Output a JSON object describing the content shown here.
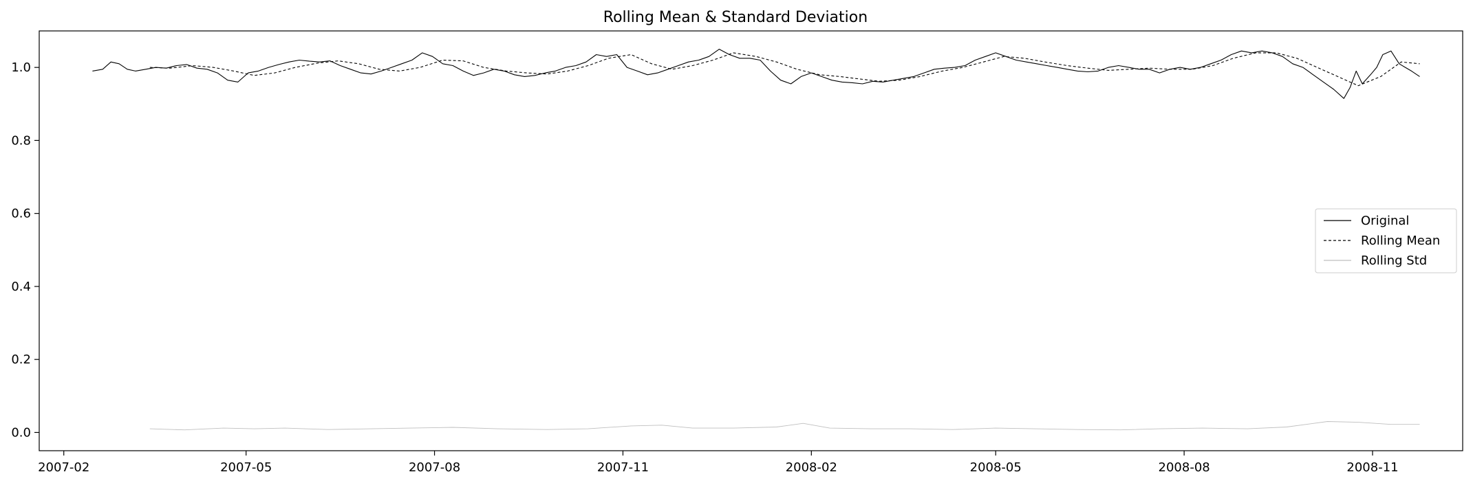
{
  "chart_data": {
    "type": "line",
    "title": "Rolling Mean & Standard Deviation",
    "xlabel": "",
    "ylabel": "",
    "xlim": [
      "2007-01-20",
      "2008-12-15"
    ],
    "ylim": [
      -0.05,
      1.1
    ],
    "x_ticks": [
      "2007-02",
      "2007-05",
      "2007-08",
      "2007-11",
      "2008-02",
      "2008-05",
      "2008-08",
      "2008-11"
    ],
    "y_ticks": [
      0.0,
      0.2,
      0.4,
      0.6,
      0.8,
      1.0
    ],
    "grid": false,
    "legend_position": "right",
    "series": [
      {
        "name": "Original",
        "style": "solid",
        "color": "#000000",
        "points": [
          [
            "2007-02-15",
            0.99
          ],
          [
            "2007-02-20",
            0.995
          ],
          [
            "2007-02-24",
            1.015
          ],
          [
            "2007-02-28",
            1.01
          ],
          [
            "2007-03-04",
            0.995
          ],
          [
            "2007-03-08",
            0.99
          ],
          [
            "2007-03-13",
            0.995
          ],
          [
            "2007-03-18",
            1.0
          ],
          [
            "2007-03-23",
            0.998
          ],
          [
            "2007-03-28",
            1.005
          ],
          [
            "2007-04-02",
            1.008
          ],
          [
            "2007-04-07",
            0.998
          ],
          [
            "2007-04-12",
            0.995
          ],
          [
            "2007-04-17",
            0.985
          ],
          [
            "2007-04-22",
            0.965
          ],
          [
            "2007-04-27",
            0.96
          ],
          [
            "2007-05-02",
            0.985
          ],
          [
            "2007-05-07",
            0.99
          ],
          [
            "2007-05-12",
            1.0
          ],
          [
            "2007-05-17",
            1.008
          ],
          [
            "2007-05-22",
            1.015
          ],
          [
            "2007-05-27",
            1.02
          ],
          [
            "2007-06-01",
            1.017
          ],
          [
            "2007-06-06",
            1.015
          ],
          [
            "2007-06-11",
            1.018
          ],
          [
            "2007-06-16",
            1.005
          ],
          [
            "2007-06-21",
            0.995
          ],
          [
            "2007-06-26",
            0.985
          ],
          [
            "2007-07-01",
            0.982
          ],
          [
            "2007-07-06",
            0.99
          ],
          [
            "2007-07-11",
            1.0
          ],
          [
            "2007-07-16",
            1.01
          ],
          [
            "2007-07-21",
            1.02
          ],
          [
            "2007-07-26",
            1.04
          ],
          [
            "2007-07-31",
            1.03
          ],
          [
            "2007-08-05",
            1.01
          ],
          [
            "2007-08-10",
            1.005
          ],
          [
            "2007-08-15",
            0.99
          ],
          [
            "2007-08-20",
            0.978
          ],
          [
            "2007-08-25",
            0.985
          ],
          [
            "2007-08-30",
            0.995
          ],
          [
            "2007-09-04",
            0.99
          ],
          [
            "2007-09-09",
            0.98
          ],
          [
            "2007-09-14",
            0.975
          ],
          [
            "2007-09-19",
            0.978
          ],
          [
            "2007-09-24",
            0.985
          ],
          [
            "2007-09-29",
            0.99
          ],
          [
            "2007-10-04",
            1.0
          ],
          [
            "2007-10-09",
            1.005
          ],
          [
            "2007-10-14",
            1.015
          ],
          [
            "2007-10-19",
            1.035
          ],
          [
            "2007-10-24",
            1.03
          ],
          [
            "2007-10-29",
            1.035
          ],
          [
            "2007-11-03",
            1.0
          ],
          [
            "2007-11-08",
            0.99
          ],
          [
            "2007-11-13",
            0.98
          ],
          [
            "2007-11-18",
            0.985
          ],
          [
            "2007-11-23",
            0.995
          ],
          [
            "2007-11-28",
            1.005
          ],
          [
            "2007-12-03",
            1.015
          ],
          [
            "2007-12-08",
            1.02
          ],
          [
            "2007-12-13",
            1.03
          ],
          [
            "2007-12-18",
            1.05
          ],
          [
            "2007-12-23",
            1.035
          ],
          [
            "2007-12-28",
            1.025
          ],
          [
            "2008-01-02",
            1.025
          ],
          [
            "2008-01-07",
            1.02
          ],
          [
            "2008-01-12",
            0.99
          ],
          [
            "2008-01-17",
            0.965
          ],
          [
            "2008-01-22",
            0.955
          ],
          [
            "2008-01-27",
            0.975
          ],
          [
            "2008-02-01",
            0.985
          ],
          [
            "2008-02-06",
            0.975
          ],
          [
            "2008-02-11",
            0.965
          ],
          [
            "2008-02-16",
            0.96
          ],
          [
            "2008-02-21",
            0.958
          ],
          [
            "2008-02-26",
            0.955
          ],
          [
            "2008-03-02",
            0.962
          ],
          [
            "2008-03-07",
            0.96
          ],
          [
            "2008-03-12",
            0.965
          ],
          [
            "2008-03-17",
            0.97
          ],
          [
            "2008-03-22",
            0.975
          ],
          [
            "2008-03-27",
            0.985
          ],
          [
            "2008-04-01",
            0.995
          ],
          [
            "2008-04-06",
            0.998
          ],
          [
            "2008-04-11",
            1.0
          ],
          [
            "2008-04-16",
            1.005
          ],
          [
            "2008-04-21",
            1.02
          ],
          [
            "2008-04-26",
            1.03
          ],
          [
            "2008-05-01",
            1.04
          ],
          [
            "2008-05-06",
            1.03
          ],
          [
            "2008-05-11",
            1.02
          ],
          [
            "2008-05-16",
            1.015
          ],
          [
            "2008-05-21",
            1.01
          ],
          [
            "2008-05-26",
            1.005
          ],
          [
            "2008-05-31",
            1.0
          ],
          [
            "2008-06-05",
            0.995
          ],
          [
            "2008-06-10",
            0.99
          ],
          [
            "2008-06-15",
            0.988
          ],
          [
            "2008-06-20",
            0.99
          ],
          [
            "2008-06-25",
            1.0
          ],
          [
            "2008-06-30",
            1.005
          ],
          [
            "2008-07-05",
            1.0
          ],
          [
            "2008-07-10",
            0.995
          ],
          [
            "2008-07-15",
            0.995
          ],
          [
            "2008-07-20",
            0.985
          ],
          [
            "2008-07-25",
            0.995
          ],
          [
            "2008-07-30",
            1.0
          ],
          [
            "2008-08-04",
            0.995
          ],
          [
            "2008-08-09",
            1.0
          ],
          [
            "2008-08-14",
            1.01
          ],
          [
            "2008-08-19",
            1.02
          ],
          [
            "2008-08-24",
            1.035
          ],
          [
            "2008-08-29",
            1.045
          ],
          [
            "2008-09-03",
            1.04
          ],
          [
            "2008-09-08",
            1.045
          ],
          [
            "2008-09-13",
            1.04
          ],
          [
            "2008-09-18",
            1.03
          ],
          [
            "2008-09-23",
            1.01
          ],
          [
            "2008-09-28",
            1.0
          ],
          [
            "2008-10-03",
            0.98
          ],
          [
            "2008-10-08",
            0.96
          ],
          [
            "2008-10-13",
            0.94
          ],
          [
            "2008-10-18",
            0.915
          ],
          [
            "2008-10-21",
            0.945
          ],
          [
            "2008-10-24",
            0.99
          ],
          [
            "2008-10-27",
            0.955
          ],
          [
            "2008-10-31",
            0.98
          ],
          [
            "2008-11-03",
            1.0
          ],
          [
            "2008-11-06",
            1.035
          ],
          [
            "2008-11-10",
            1.045
          ],
          [
            "2008-11-14",
            1.01
          ],
          [
            "2008-11-17",
            1.0
          ],
          [
            "2008-11-20",
            0.99
          ],
          [
            "2008-11-24",
            0.975
          ]
        ]
      },
      {
        "name": "Rolling Mean",
        "style": "dashed",
        "color": "#000000",
        "points": [
          [
            "2007-03-15",
            1.0
          ],
          [
            "2007-03-25",
            0.998
          ],
          [
            "2007-04-05",
            1.005
          ],
          [
            "2007-04-15",
            1.0
          ],
          [
            "2007-04-25",
            0.99
          ],
          [
            "2007-05-05",
            0.978
          ],
          [
            "2007-05-15",
            0.985
          ],
          [
            "2007-05-25",
            1.0
          ],
          [
            "2007-06-05",
            1.012
          ],
          [
            "2007-06-15",
            1.018
          ],
          [
            "2007-06-25",
            1.01
          ],
          [
            "2007-07-05",
            0.995
          ],
          [
            "2007-07-15",
            0.99
          ],
          [
            "2007-07-25",
            1.0
          ],
          [
            "2007-08-05",
            1.02
          ],
          [
            "2007-08-15",
            1.018
          ],
          [
            "2007-08-25",
            1.0
          ],
          [
            "2007-09-05",
            0.99
          ],
          [
            "2007-09-15",
            0.985
          ],
          [
            "2007-09-25",
            0.982
          ],
          [
            "2007-10-05",
            0.99
          ],
          [
            "2007-10-15",
            1.005
          ],
          [
            "2007-10-25",
            1.025
          ],
          [
            "2007-11-05",
            1.035
          ],
          [
            "2007-11-15",
            1.01
          ],
          [
            "2007-11-25",
            0.995
          ],
          [
            "2007-12-05",
            1.005
          ],
          [
            "2007-12-15",
            1.02
          ],
          [
            "2007-12-25",
            1.04
          ],
          [
            "2008-01-05",
            1.03
          ],
          [
            "2008-01-15",
            1.015
          ],
          [
            "2008-01-25",
            0.995
          ],
          [
            "2008-02-05",
            0.98
          ],
          [
            "2008-02-15",
            0.975
          ],
          [
            "2008-02-25",
            0.968
          ],
          [
            "2008-03-05",
            0.962
          ],
          [
            "2008-03-15",
            0.965
          ],
          [
            "2008-03-25",
            0.975
          ],
          [
            "2008-04-05",
            0.99
          ],
          [
            "2008-04-15",
            1.0
          ],
          [
            "2008-04-25",
            1.015
          ],
          [
            "2008-05-05",
            1.03
          ],
          [
            "2008-05-15",
            1.025
          ],
          [
            "2008-05-25",
            1.015
          ],
          [
            "2008-06-05",
            1.005
          ],
          [
            "2008-06-15",
            0.998
          ],
          [
            "2008-06-25",
            0.992
          ],
          [
            "2008-07-05",
            0.995
          ],
          [
            "2008-07-15",
            0.998
          ],
          [
            "2008-07-25",
            0.995
          ],
          [
            "2008-08-05",
            0.995
          ],
          [
            "2008-08-15",
            1.005
          ],
          [
            "2008-08-25",
            1.025
          ],
          [
            "2008-09-05",
            1.04
          ],
          [
            "2008-09-15",
            1.04
          ],
          [
            "2008-09-25",
            1.025
          ],
          [
            "2008-10-05",
            1.0
          ],
          [
            "2008-10-15",
            0.975
          ],
          [
            "2008-10-25",
            0.95
          ],
          [
            "2008-11-05",
            0.975
          ],
          [
            "2008-11-15",
            1.015
          ],
          [
            "2008-11-24",
            1.01
          ]
        ]
      },
      {
        "name": "Rolling Std",
        "style": "solid",
        "color": "#bfbfbf",
        "points": [
          [
            "2007-03-15",
            0.01
          ],
          [
            "2007-04-01",
            0.007
          ],
          [
            "2007-04-20",
            0.012
          ],
          [
            "2007-05-05",
            0.01
          ],
          [
            "2007-05-20",
            0.012
          ],
          [
            "2007-06-10",
            0.008
          ],
          [
            "2007-07-01",
            0.01
          ],
          [
            "2007-07-20",
            0.012
          ],
          [
            "2007-08-10",
            0.014
          ],
          [
            "2007-09-01",
            0.01
          ],
          [
            "2007-09-25",
            0.008
          ],
          [
            "2007-10-15",
            0.01
          ],
          [
            "2007-11-05",
            0.018
          ],
          [
            "2007-11-20",
            0.02
          ],
          [
            "2007-12-05",
            0.012
          ],
          [
            "2007-12-25",
            0.012
          ],
          [
            "2008-01-15",
            0.015
          ],
          [
            "2008-01-28",
            0.025
          ],
          [
            "2008-02-10",
            0.012
          ],
          [
            "2008-03-01",
            0.01
          ],
          [
            "2008-03-20",
            0.01
          ],
          [
            "2008-04-10",
            0.008
          ],
          [
            "2008-05-01",
            0.012
          ],
          [
            "2008-05-20",
            0.01
          ],
          [
            "2008-06-10",
            0.008
          ],
          [
            "2008-07-01",
            0.007
          ],
          [
            "2008-07-20",
            0.01
          ],
          [
            "2008-08-10",
            0.012
          ],
          [
            "2008-09-01",
            0.01
          ],
          [
            "2008-09-20",
            0.015
          ],
          [
            "2008-10-10",
            0.03
          ],
          [
            "2008-10-25",
            0.028
          ],
          [
            "2008-11-10",
            0.022
          ],
          [
            "2008-11-24",
            0.022
          ]
        ]
      }
    ]
  }
}
